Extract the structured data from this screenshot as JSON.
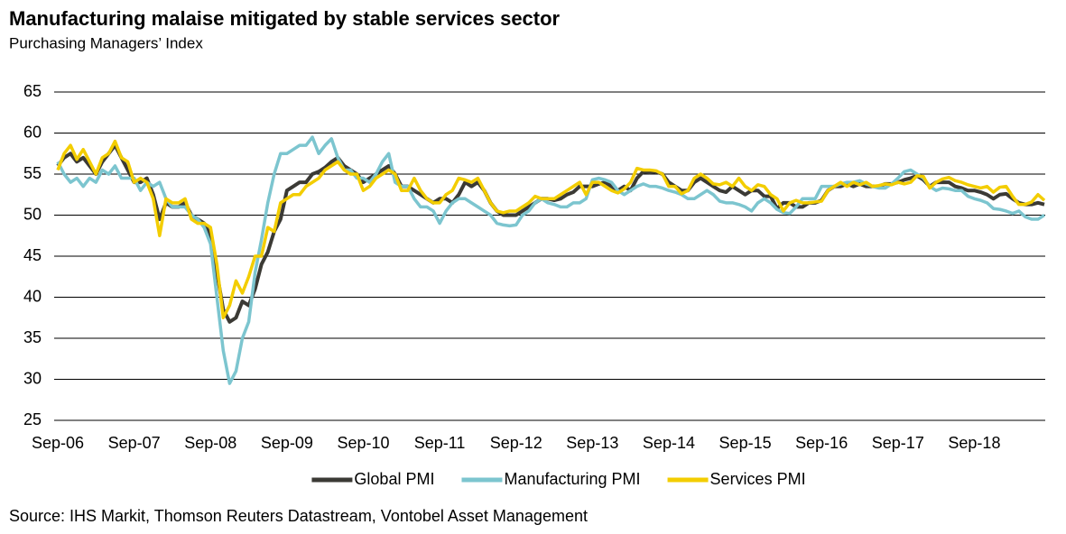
{
  "chart_data": {
    "type": "line",
    "title": "Manufacturing malaise mitigated by stable services sector",
    "subtitle": "Purchasing Managers’ Index",
    "source": "Source: IHS Markit, Thomson Reuters Datastream, Vontobel Asset Management",
    "categories": [
      "Sep-06",
      null,
      null,
      null,
      null,
      null,
      null,
      null,
      null,
      null,
      null,
      null,
      "Sep-07",
      null,
      null,
      null,
      null,
      null,
      null,
      null,
      null,
      null,
      null,
      null,
      "Sep-08",
      null,
      null,
      null,
      null,
      null,
      null,
      null,
      null,
      null,
      null,
      null,
      "Sep-09",
      null,
      null,
      null,
      null,
      null,
      null,
      null,
      null,
      null,
      null,
      null,
      "Sep-10",
      null,
      null,
      null,
      null,
      null,
      null,
      null,
      null,
      null,
      null,
      null,
      "Sep-11",
      null,
      null,
      null,
      null,
      null,
      null,
      null,
      null,
      null,
      null,
      null,
      "Sep-12",
      null,
      null,
      null,
      null,
      null,
      null,
      null,
      null,
      null,
      null,
      null,
      "Sep-13",
      null,
      null,
      null,
      null,
      null,
      null,
      null,
      null,
      null,
      null,
      null,
      "Sep-14",
      null,
      null,
      null,
      null,
      null,
      null,
      null,
      null,
      null,
      null,
      null,
      "Sep-15",
      null,
      null,
      null,
      null,
      null,
      null,
      null,
      null,
      null,
      null,
      null,
      "Sep-16",
      null,
      null,
      null,
      null,
      null,
      null,
      null,
      null,
      null,
      null,
      null,
      "Sep-17",
      null,
      null,
      null,
      null,
      null,
      null,
      null,
      null,
      null,
      null,
      null,
      "Sep-18",
      null,
      null,
      null,
      null,
      null,
      null,
      null,
      null,
      null,
      null,
      null
    ],
    "series": [
      {
        "name": "Global PMI",
        "color": "#3b3a35",
        "values": [
          56,
          57,
          57.5,
          56.5,
          57,
          56,
          55,
          56.5,
          57.5,
          58.5,
          57,
          55.5,
          54,
          54,
          54.5,
          52.5,
          49.5,
          51.5,
          51,
          51,
          51.5,
          50,
          49.5,
          49,
          47.5,
          43,
          38.5,
          37,
          37.5,
          39.5,
          39,
          41,
          44,
          45.5,
          48,
          49.5,
          53,
          53.5,
          54,
          54,
          55,
          55.3,
          55.8,
          56.5,
          57,
          56,
          55.5,
          55,
          54,
          54.5,
          55,
          55.5,
          56,
          55,
          53.5,
          53.5,
          53,
          52.5,
          52,
          51.5,
          52,
          52,
          51.5,
          52.5,
          54,
          53.5,
          54,
          53,
          51.5,
          50.5,
          50,
          50,
          50,
          50.5,
          51,
          51.5,
          52,
          52,
          51.8,
          52,
          52.5,
          52.8,
          53.5,
          53.5,
          53.5,
          53.8,
          54,
          53.5,
          53,
          53.5,
          53,
          54.5,
          55.3,
          55.2,
          55.3,
          55,
          54,
          53.5,
          53,
          53,
          54,
          54.5,
          54,
          53.5,
          53,
          52.8,
          53.5,
          53,
          52.5,
          53,
          53,
          52.3,
          52.3,
          50.8,
          51.5,
          51.5,
          51,
          51,
          51.5,
          51.5,
          51.8,
          53,
          53.5,
          53.5,
          53.8,
          53.5,
          53.8,
          53.5,
          53.5,
          53.5,
          53.8,
          53.8,
          54,
          54.3,
          54.5,
          54.8,
          54.3,
          53.5,
          54,
          54,
          54,
          53.5,
          53.3,
          53,
          53,
          52.8,
          52.5,
          52,
          52.5,
          52.6,
          52,
          51.5,
          51.3,
          51.3,
          51.5,
          51.3
        ]
      },
      {
        "name": "Manufacturing PMI",
        "color": "#7cc5cf",
        "values": [
          56.5,
          55,
          54,
          54.5,
          53.5,
          54.5,
          54,
          55.5,
          55,
          56,
          54.5,
          54.5,
          54.5,
          53,
          54,
          53.5,
          54,
          52,
          51,
          51,
          51,
          50,
          49.5,
          48.5,
          46.5,
          40,
          33.5,
          29.5,
          31,
          35,
          37,
          43,
          47,
          51.5,
          55,
          57.5,
          57.5,
          58,
          58.5,
          58.5,
          59.5,
          57.5,
          58.5,
          59.3,
          57,
          55.5,
          55.5,
          54.5,
          54.5,
          54,
          55,
          56.5,
          57.5,
          54,
          53.5,
          53.5,
          52,
          51,
          51,
          50.5,
          49,
          50.5,
          51.5,
          52,
          52,
          51.5,
          51,
          50.5,
          50,
          49,
          48.8,
          48.7,
          48.8,
          50,
          50.5,
          51.5,
          52,
          51.5,
          51.3,
          51,
          51,
          51.5,
          51.5,
          52,
          54.3,
          54.5,
          54.3,
          54,
          53,
          52.5,
          53,
          53.5,
          53.8,
          53.5,
          53.5,
          53.3,
          53,
          52.8,
          52.5,
          52,
          52,
          52.5,
          53,
          52.5,
          51.7,
          51.5,
          51.5,
          51.3,
          51,
          50.5,
          51.5,
          52,
          51.5,
          50.7,
          50.3,
          50.2,
          51,
          52,
          52,
          52,
          53.5,
          53.5,
          53.5,
          53.8,
          54,
          54,
          54.2,
          53.8,
          53.5,
          53.3,
          53.3,
          53.8,
          54.5,
          55.3,
          55.5,
          55,
          54.5,
          53.5,
          53,
          53.3,
          53.2,
          53,
          53,
          52.3,
          52,
          51.8,
          51.5,
          50.8,
          50.7,
          50.5,
          50.2,
          50.5,
          49.8,
          49.5,
          49.5,
          50
        ]
      },
      {
        "name": "Services PMI",
        "color": "#f3cd00",
        "values": [
          55.5,
          57.5,
          58.5,
          56.8,
          58,
          56.5,
          55,
          57,
          57.5,
          59,
          57,
          56.5,
          54,
          54.5,
          54,
          52,
          47.5,
          52,
          51.5,
          51.5,
          52,
          49.5,
          49,
          49,
          48.5,
          44,
          37.5,
          39,
          42,
          40.5,
          42.5,
          45,
          45,
          48.5,
          48,
          51.5,
          52,
          52.5,
          52.5,
          53.5,
          54,
          54.5,
          55.5,
          56,
          56.5,
          55.5,
          55,
          55,
          53,
          53.5,
          54.5,
          55,
          55.5,
          55,
          53,
          53,
          54.5,
          53,
          52,
          51.5,
          51.5,
          52.5,
          53,
          54.5,
          54.3,
          54,
          54.5,
          53,
          51.5,
          50.5,
          50.3,
          50.5,
          50.5,
          51,
          51.5,
          52.3,
          52,
          52,
          52,
          52.5,
          53,
          53.5,
          54,
          52.5,
          54,
          54,
          53.5,
          53,
          52.7,
          53.2,
          54,
          55.7,
          55.5,
          55.5,
          55.4,
          55,
          53.5,
          53.5,
          52.6,
          53,
          54.5,
          55,
          54.5,
          53.8,
          53.7,
          54,
          53.5,
          54.5,
          53.5,
          53,
          53.7,
          53.5,
          52.5,
          52,
          50.5,
          51.5,
          51.8,
          51.5,
          51.5,
          51.6,
          51.7,
          53,
          53.5,
          54,
          53.5,
          54,
          53.7,
          54,
          53.5,
          53.6,
          53.8,
          53.7,
          54,
          53.8,
          54,
          54.8,
          54.7,
          53.3,
          54,
          54.4,
          54.6,
          54.2,
          54,
          53.7,
          53.5,
          53.3,
          53.5,
          52.8,
          53.4,
          53.5,
          52.3,
          51.3,
          51.3,
          51.6,
          52.5,
          51.8
        ]
      }
    ],
    "ylim": [
      25,
      65
    ],
    "yticks": [
      25,
      30,
      35,
      40,
      45,
      50,
      55,
      60,
      65
    ],
    "grid": true,
    "legend": "bottom"
  }
}
